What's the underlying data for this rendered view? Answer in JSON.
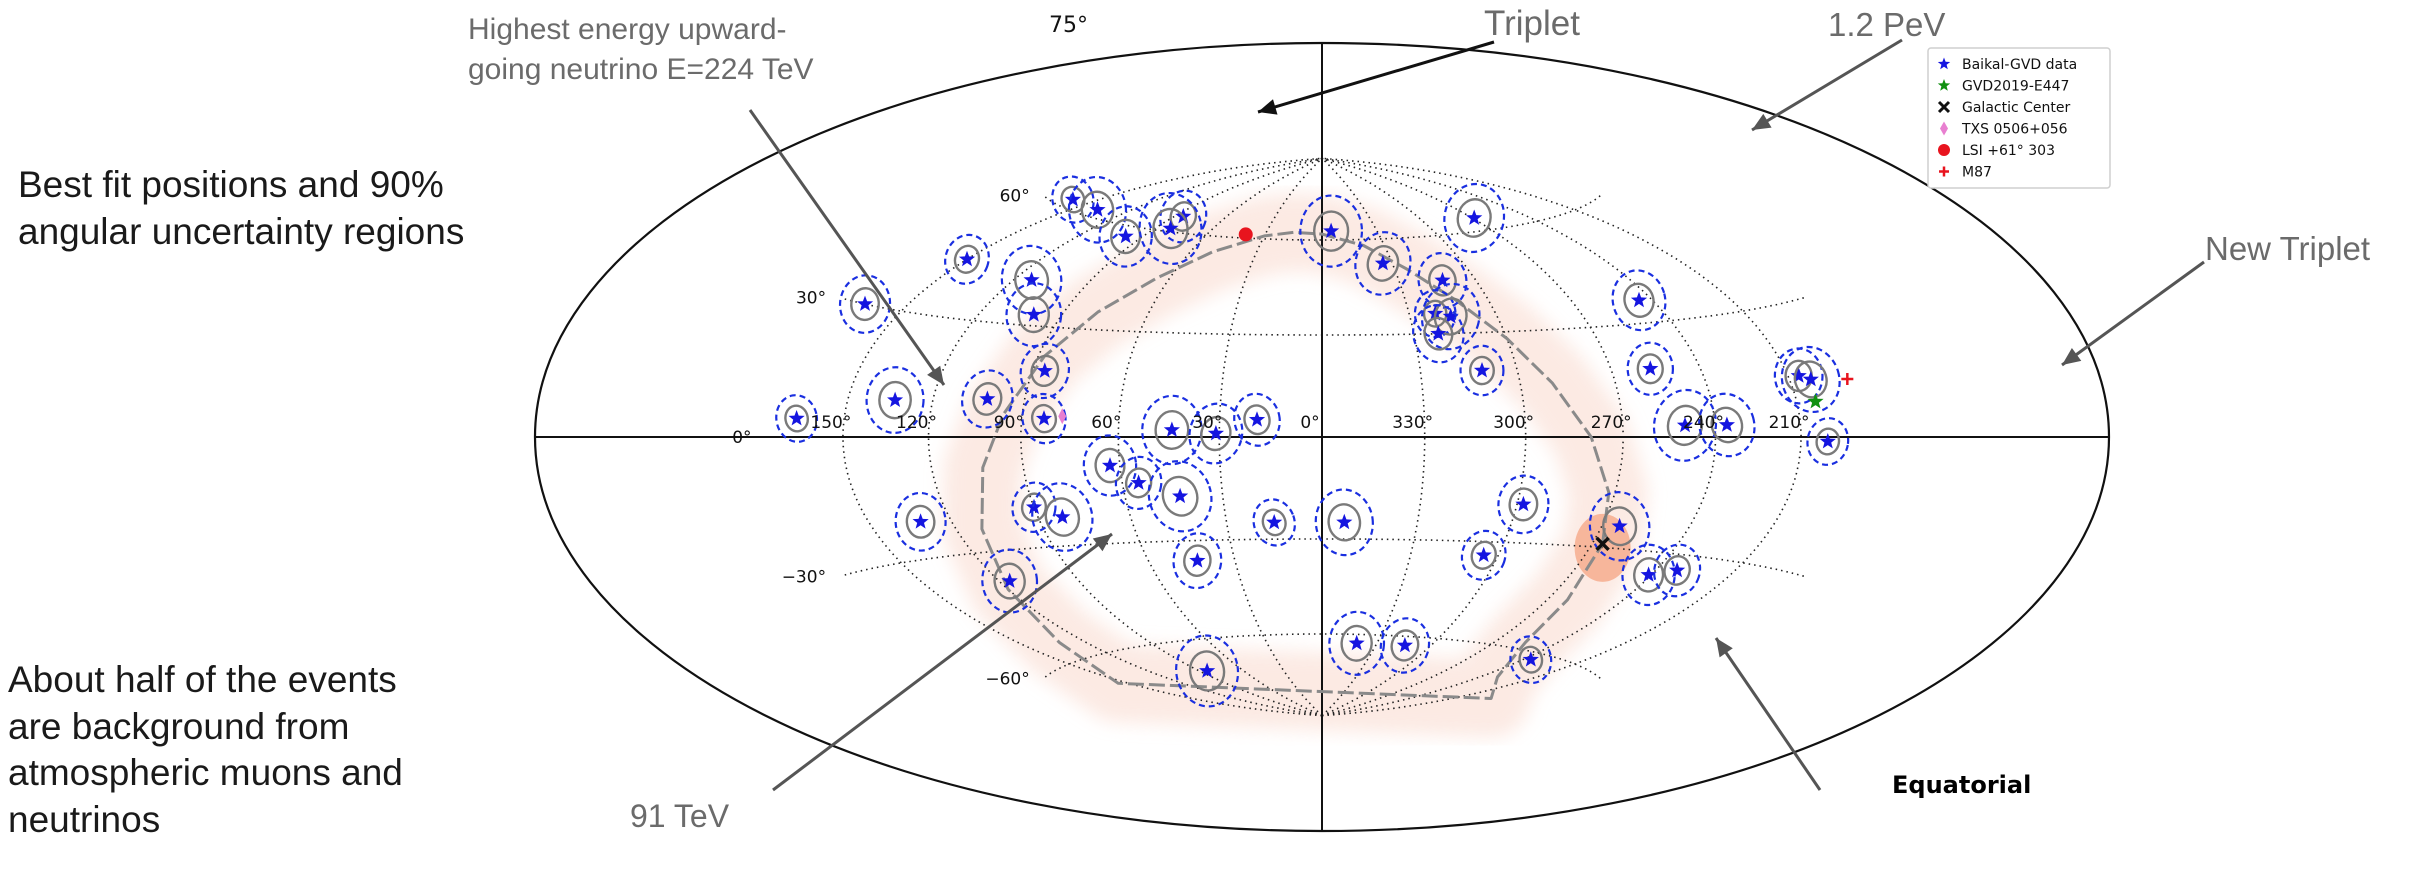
{
  "slide": {
    "description": "Best fit positions and 90%\nangular uncertainty regions",
    "background_note": "About half of the events\nare background from\natmospheric muons and\nneutrinos"
  },
  "callouts": {
    "top_left": "Highest energy upward-\ngoing neutrino E=224 TeV",
    "triplet": "Triplet",
    "pev": "1.2 PeV",
    "new_triplet": "New Triplet",
    "tev91": "91 TeV"
  },
  "chart_data": {
    "type": "scatter",
    "projection": "hammer-aitoff",
    "title": "",
    "frame_label": "Equatorial",
    "ra_ticks": [
      "150°",
      "120°",
      "90°",
      "60°",
      "30°",
      "0°",
      "330°",
      "300°",
      "270°",
      "240°",
      "210°"
    ],
    "ra_tick_values": [
      150,
      120,
      90,
      60,
      30,
      0,
      330,
      300,
      270,
      240,
      210
    ],
    "dec_ticks": [
      "75°",
      "60°",
      "30°",
      "0°",
      "−30°",
      "−60°"
    ],
    "dec_tick_values": [
      75,
      60,
      30,
      0,
      -30,
      -60
    ],
    "grid": true,
    "legend_position": "top-right",
    "legend": [
      {
        "label": "Baikal-GVD data",
        "marker": "star",
        "color": "#1515e0"
      },
      {
        "label": "GVD2019-E447",
        "marker": "star",
        "color": "#109010"
      },
      {
        "label": "Galactic Center",
        "marker": "x",
        "color": "#111111"
      },
      {
        "label": "TXS 0506+056",
        "marker": "diamond",
        "color": "#e87fd0"
      },
      {
        "label": "LSI +61° 303",
        "marker": "circle",
        "color": "#e8141e"
      },
      {
        "label": "M87",
        "marker": "plus",
        "color": "#e8141e"
      }
    ],
    "series": [
      {
        "name": "Baikal-GVD data",
        "points": [
          {
            "ra": 162,
            "dec": 62
          },
          {
            "ra": 137,
            "dec": 62
          },
          {
            "ra": 167,
            "dec": 30
          },
          {
            "ra": 150,
            "dec": 44
          },
          {
            "ra": 113,
            "dec": 42
          },
          {
            "ra": 98,
            "dec": 57
          },
          {
            "ra": 85,
            "dec": 65
          },
          {
            "ra": 82,
            "dec": 61
          },
          {
            "ra": 100,
            "dec": 33
          },
          {
            "ra": 86,
            "dec": 18
          },
          {
            "ra": 168,
            "dec": 4
          },
          {
            "ra": 133,
            "dec": 9
          },
          {
            "ra": 102,
            "dec": 10
          },
          {
            "ra": 83,
            "dec": 5
          },
          {
            "ra": 44,
            "dec": 2
          },
          {
            "ra": 31,
            "dec": 1
          },
          {
            "ra": 19,
            "dec": 5
          },
          {
            "ra": 355,
            "dec": 63
          },
          {
            "ra": 334,
            "dec": 52
          },
          {
            "ra": 313,
            "dec": 46
          },
          {
            "ra": 321,
            "dec": 36
          },
          {
            "ra": 316,
            "dec": 35
          },
          {
            "ra": 322,
            "dec": 30
          },
          {
            "ra": 311,
            "dec": 19
          },
          {
            "ra": 269,
            "dec": 64
          },
          {
            "ra": 245,
            "dec": 36
          },
          {
            "ra": 257,
            "dec": 18
          },
          {
            "ra": 250,
            "dec": 3
          },
          {
            "ra": 236,
            "dec": 3
          },
          {
            "ra": 206,
            "dec": 14
          },
          {
            "ra": 200,
            "dec": -1
          },
          {
            "ra": 202,
            "dec": 13
          },
          {
            "ra": 131,
            "dec": -21
          },
          {
            "ra": 90,
            "dec": -19
          },
          {
            "ra": 82,
            "dec": -22
          },
          {
            "ra": 63,
            "dec": -8
          },
          {
            "ra": 55,
            "dec": -13
          },
          {
            "ra": 43,
            "dec": -17
          },
          {
            "ra": 116,
            "dec": -38
          },
          {
            "ra": 43,
            "dec": -36
          },
          {
            "ra": 15,
            "dec": -25
          },
          {
            "ra": 353,
            "dec": -25
          },
          {
            "ra": 298,
            "dec": -19
          },
          {
            "ra": 305,
            "dec": -34
          },
          {
            "ra": 264,
            "dec": -24
          },
          {
            "ra": 241,
            "dec": -36
          },
          {
            "ra": 232,
            "dec": -34
          },
          {
            "ra": 85,
            "dec": -70
          },
          {
            "ra": 341,
            "dec": -63
          },
          {
            "ra": 314,
            "dec": -63
          },
          {
            "ra": 236,
            "dec": -62
          }
        ]
      },
      {
        "name": "GVD2019-E447",
        "points": [
          {
            "ra": 203,
            "dec": 8
          }
        ]
      },
      {
        "name": "Galactic Center",
        "points": [
          {
            "ra": 266.4,
            "dec": -29
          }
        ]
      },
      {
        "name": "TXS 0506+056",
        "points": [
          {
            "ra": 77.4,
            "dec": 5.7
          }
        ]
      },
      {
        "name": "LSI +61° 303",
        "points": [
          {
            "ra": 40.1,
            "dec": 61.2
          }
        ]
      },
      {
        "name": "M87",
        "points": [
          {
            "ra": 187.7,
            "dec": 12.4
          }
        ]
      }
    ],
    "galactic_plane": [
      {
        "ra": 266.4,
        "dec": -29
      },
      {
        "ra": 272,
        "dec": -15
      },
      {
        "ra": 280,
        "dec": 0
      },
      {
        "ra": 290,
        "dec": 15
      },
      {
        "ra": 300,
        "dec": 28
      },
      {
        "ra": 312,
        "dec": 40
      },
      {
        "ra": 325,
        "dec": 50
      },
      {
        "ra": 340,
        "dec": 58
      },
      {
        "ra": 0,
        "dec": 62
      },
      {
        "ra": 15,
        "dec": 62.5
      },
      {
        "ra": 30,
        "dec": 61
      },
      {
        "ra": 50,
        "dec": 55
      },
      {
        "ra": 65,
        "dec": 46
      },
      {
        "ra": 78,
        "dec": 35
      },
      {
        "ra": 88,
        "dec": 22
      },
      {
        "ra": 96,
        "dec": 6
      },
      {
        "ra": 103,
        "dec": -8
      },
      {
        "ra": 111,
        "dec": -24
      },
      {
        "ra": 120,
        "dec": -40
      },
      {
        "ra": 132,
        "dec": -55
      },
      {
        "ra": 155,
        "dec": -67
      },
      {
        "ra": 190,
        "dec": -72
      },
      {
        "ra": 230,
        "dec": -68
      },
      {
        "ra": 255,
        "dec": -58
      },
      {
        "ra": 262,
        "dec": -45
      },
      {
        "ra": 266.4,
        "dec": -29
      }
    ]
  }
}
